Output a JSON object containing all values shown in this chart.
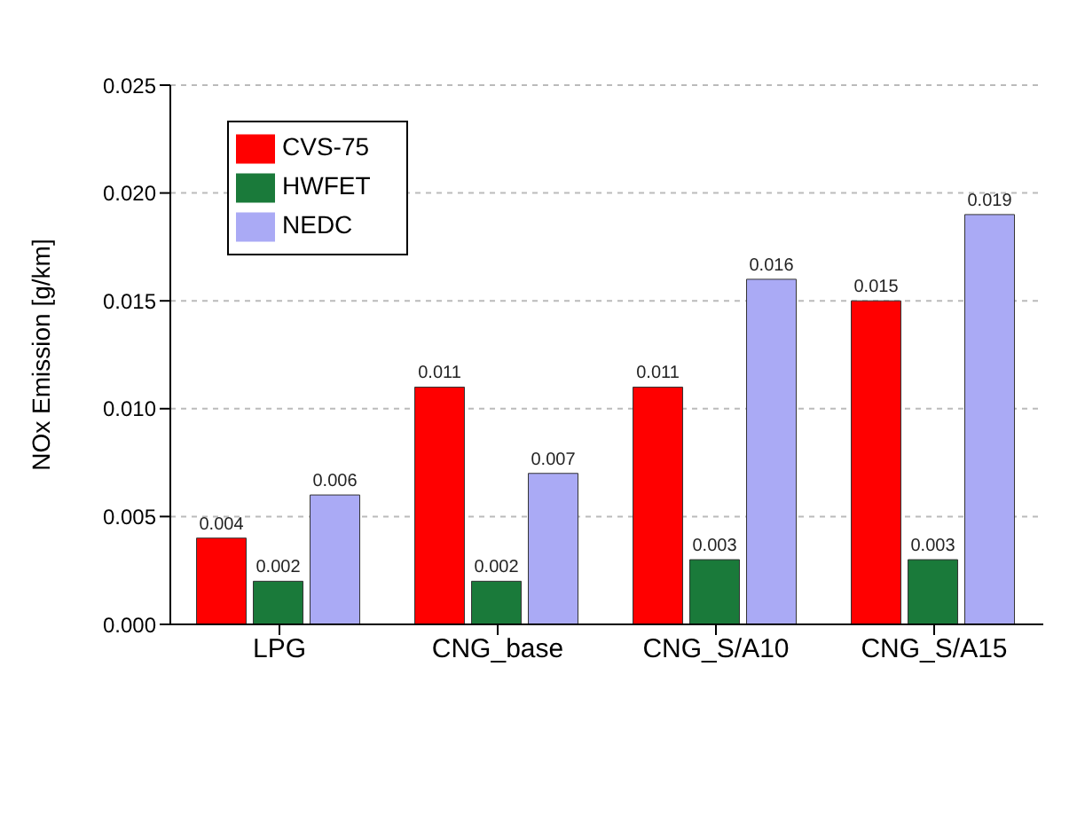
{
  "chart_data": {
    "type": "bar",
    "ylabel": "NOx Emission [g/km]",
    "categories": [
      "LPG",
      "CNG_base",
      "CNG_S/A10",
      "CNG_S/A15"
    ],
    "series": [
      {
        "name": "CVS-75",
        "color": "#ff0000",
        "values": [
          0.004,
          0.011,
          0.011,
          0.015
        ]
      },
      {
        "name": "HWFET",
        "color": "#1a7a3a",
        "values": [
          0.002,
          0.002,
          0.003,
          0.003
        ]
      },
      {
        "name": "NEDC",
        "color": "#aaaaf5",
        "values": [
          0.006,
          0.007,
          0.016,
          0.019
        ]
      }
    ],
    "ylim": [
      0,
      0.025
    ],
    "yticks": [
      {
        "value": 0,
        "label": "0.000"
      },
      {
        "value": 0.005,
        "label": "0.005"
      },
      {
        "value": 0.01,
        "label": "0.010"
      },
      {
        "value": 0.015,
        "label": "0.015"
      },
      {
        "value": 0.02,
        "label": "0.020"
      },
      {
        "value": 0.025,
        "label": "0.025"
      }
    ],
    "grid": "y",
    "legend": "top left",
    "data_labels": true
  }
}
